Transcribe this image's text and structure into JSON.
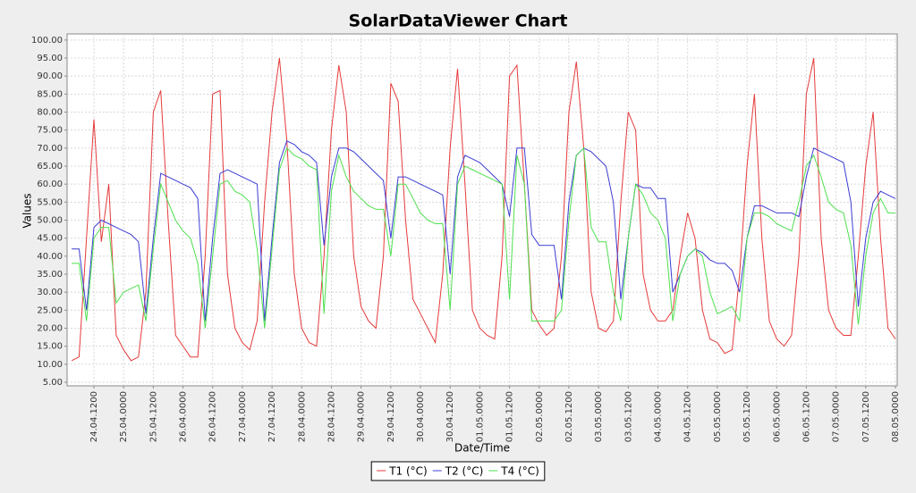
{
  "chart_data": {
    "type": "line",
    "title": "SolarDataViewer Chart",
    "x_label": "Date/Time",
    "y_label": "Values",
    "x": [
      "24.04.0300",
      "24.04.0600",
      "24.04.0900",
      "24.04.1200",
      "24.04.1500",
      "24.04.1800",
      "24.04.2100",
      "25.04.0000",
      "25.04.0300",
      "25.04.0600",
      "25.04.0900",
      "25.04.1200",
      "25.04.1500",
      "25.04.1800",
      "25.04.2100",
      "26.04.0000",
      "26.04.0300",
      "26.04.0600",
      "26.04.0900",
      "26.04.1200",
      "26.04.1500",
      "26.04.1800",
      "26.04.2100",
      "27.04.0000",
      "27.04.0300",
      "27.04.0600",
      "27.04.0900",
      "27.04.1200",
      "27.04.1500",
      "27.04.1800",
      "27.04.2100",
      "28.04.0000",
      "28.04.0300",
      "28.04.0600",
      "28.04.0900",
      "28.04.1200",
      "28.04.1500",
      "28.04.1800",
      "28.04.2100",
      "29.04.0000",
      "29.04.0300",
      "29.04.0600",
      "29.04.0900",
      "29.04.1200",
      "29.04.1500",
      "29.04.1800",
      "29.04.2100",
      "30.04.0000",
      "30.04.0300",
      "30.04.0600",
      "30.04.0900",
      "30.04.1200",
      "30.04.1500",
      "30.04.1800",
      "30.04.2100",
      "01.05.0000",
      "01.05.0300",
      "01.05.0600",
      "01.05.0900",
      "01.05.1200",
      "01.05.1500",
      "01.05.1800",
      "01.05.2100",
      "02.05.0000",
      "02.05.0300",
      "02.05.0600",
      "02.05.0900",
      "02.05.1200",
      "02.05.1500",
      "02.05.1800",
      "02.05.2100",
      "03.05.0000",
      "03.05.0300",
      "03.05.0600",
      "03.05.0900",
      "03.05.1200",
      "03.05.1500",
      "03.05.1800",
      "03.05.2100",
      "04.05.0000",
      "04.05.0300",
      "04.05.0600",
      "04.05.0900",
      "04.05.1200",
      "04.05.1500",
      "04.05.1800",
      "04.05.2100",
      "05.05.0000",
      "05.05.0300",
      "05.05.0600",
      "05.05.0900",
      "05.05.1200",
      "05.05.1500",
      "05.05.1800",
      "05.05.2100",
      "06.05.0000",
      "06.05.0300",
      "06.05.0600",
      "06.05.0900",
      "06.05.1200",
      "06.05.1500",
      "06.05.1800",
      "06.05.2100",
      "07.05.0000",
      "07.05.0300",
      "07.05.0600",
      "07.05.0900",
      "07.05.1200",
      "07.05.1500",
      "07.05.1800",
      "07.05.2100",
      "08.05.0000"
    ],
    "series": [
      {
        "name": "T1 (°C)",
        "color": "#e53b3b",
        "values": [
          11,
          12,
          45,
          78,
          44,
          60,
          18,
          14,
          11,
          12,
          30,
          80,
          86,
          50,
          18,
          15,
          12,
          12,
          40,
          85,
          86,
          35,
          20,
          16,
          14,
          22,
          55,
          80,
          95,
          72,
          35,
          20,
          16,
          15,
          40,
          75,
          93,
          80,
          40,
          26,
          22,
          20,
          40,
          88,
          83,
          50,
          28,
          24,
          20,
          16,
          35,
          70,
          92,
          60,
          25,
          20,
          18,
          17,
          40,
          90,
          93,
          60,
          25,
          21,
          18,
          20,
          40,
          80,
          94,
          70,
          30,
          20,
          19,
          22,
          55,
          80,
          75,
          35,
          25,
          22,
          22,
          25,
          40,
          52,
          45,
          25,
          17,
          16,
          13,
          14,
          35,
          65,
          85,
          45,
          22,
          17,
          15,
          18,
          40,
          85,
          95,
          45,
          25,
          20,
          18,
          18,
          40,
          65,
          80,
          45,
          20,
          17
        ]
      },
      {
        "name": "T2 (°C)",
        "color": "#3c3cd4",
        "values": [
          42,
          42,
          25,
          48,
          50,
          49,
          48,
          47,
          46,
          44,
          24,
          45,
          63,
          62,
          61,
          60,
          59,
          56,
          22,
          45,
          63,
          64,
          63,
          62,
          61,
          60,
          22,
          45,
          66,
          72,
          71,
          69,
          68,
          66,
          43,
          62,
          70,
          70,
          69,
          67,
          65,
          63,
          61,
          45,
          62,
          62,
          61,
          60,
          59,
          58,
          57,
          35,
          62,
          68,
          67,
          66,
          64,
          62,
          60,
          51,
          70,
          70,
          46,
          43,
          43,
          43,
          28,
          55,
          68,
          70,
          69,
          67,
          65,
          55,
          28,
          45,
          60,
          59,
          59,
          56,
          56,
          30,
          35,
          40,
          42,
          41,
          39,
          38,
          38,
          36,
          30,
          45,
          54,
          54,
          53,
          52,
          52,
          52,
          51,
          62,
          70,
          69,
          68,
          67,
          66,
          55,
          26,
          45,
          55,
          58,
          57,
          56
        ]
      },
      {
        "name": "T4 (°C)",
        "color": "#4fe04f",
        "values": [
          38,
          38,
          22,
          45,
          48,
          48,
          27,
          30,
          31,
          32,
          22,
          42,
          60,
          55,
          50,
          47,
          45,
          38,
          20,
          40,
          60,
          61,
          58,
          57,
          55,
          42,
          20,
          42,
          64,
          70,
          68,
          67,
          65,
          64,
          24,
          58,
          68,
          62,
          58,
          56,
          54,
          53,
          53,
          40,
          60,
          60,
          56,
          52,
          50,
          49,
          49,
          25,
          60,
          65,
          64,
          63,
          62,
          61,
          60,
          28,
          68,
          60,
          22,
          22,
          22,
          22,
          25,
          50,
          68,
          70,
          48,
          44,
          44,
          30,
          22,
          45,
          60,
          57,
          52,
          50,
          45,
          22,
          35,
          40,
          42,
          40,
          30,
          24,
          25,
          26,
          22,
          45,
          52,
          52,
          51,
          49,
          48,
          47,
          55,
          65,
          68,
          62,
          55,
          53,
          52,
          43,
          21,
          40,
          52,
          56,
          52,
          52
        ]
      }
    ],
    "xticks": [
      "24.04.1200",
      "25.04.0000",
      "25.04.1200",
      "26.04.0000",
      "26.04.1200",
      "27.04.0000",
      "27.04.1200",
      "28.04.0000",
      "28.04.1200",
      "29.04.0000",
      "29.04.1200",
      "30.04.0000",
      "30.04.1200",
      "01.05.0000",
      "01.05.1200",
      "02.05.0000",
      "02.05.1200",
      "03.05.0000",
      "03.05.1200",
      "04.05.0000",
      "04.05.1200",
      "05.05.0000",
      "05.05.1200",
      "06.05.0000",
      "06.05.1200",
      "07.05.0000",
      "07.05.1200",
      "08.05.0000"
    ],
    "ylim": [
      4,
      101.7
    ],
    "yticks": [
      {
        "value": 5,
        "label": "5.00"
      },
      {
        "value": 10,
        "label": "10.00"
      },
      {
        "value": 15,
        "label": "15.00"
      },
      {
        "value": 20,
        "label": "20.00"
      },
      {
        "value": 25,
        "label": "25.00"
      },
      {
        "value": 30,
        "label": "30.00"
      },
      {
        "value": 35,
        "label": "35.00"
      },
      {
        "value": 40,
        "label": "40.00"
      },
      {
        "value": 45,
        "label": "45.00"
      },
      {
        "value": 50,
        "label": "50.00"
      },
      {
        "value": 55,
        "label": "55.00"
      },
      {
        "value": 60,
        "label": "60.00"
      },
      {
        "value": 65,
        "label": "65.00"
      },
      {
        "value": 70,
        "label": "70.00"
      },
      {
        "value": 75,
        "label": "75.00"
      },
      {
        "value": 80,
        "label": "80.00"
      },
      {
        "value": 85,
        "label": "85.00"
      },
      {
        "value": 90,
        "label": "90.00"
      },
      {
        "value": 95,
        "label": "95.00"
      },
      {
        "value": 100,
        "label": "100.00"
      }
    ],
    "grid": true,
    "legend": "bottom"
  }
}
